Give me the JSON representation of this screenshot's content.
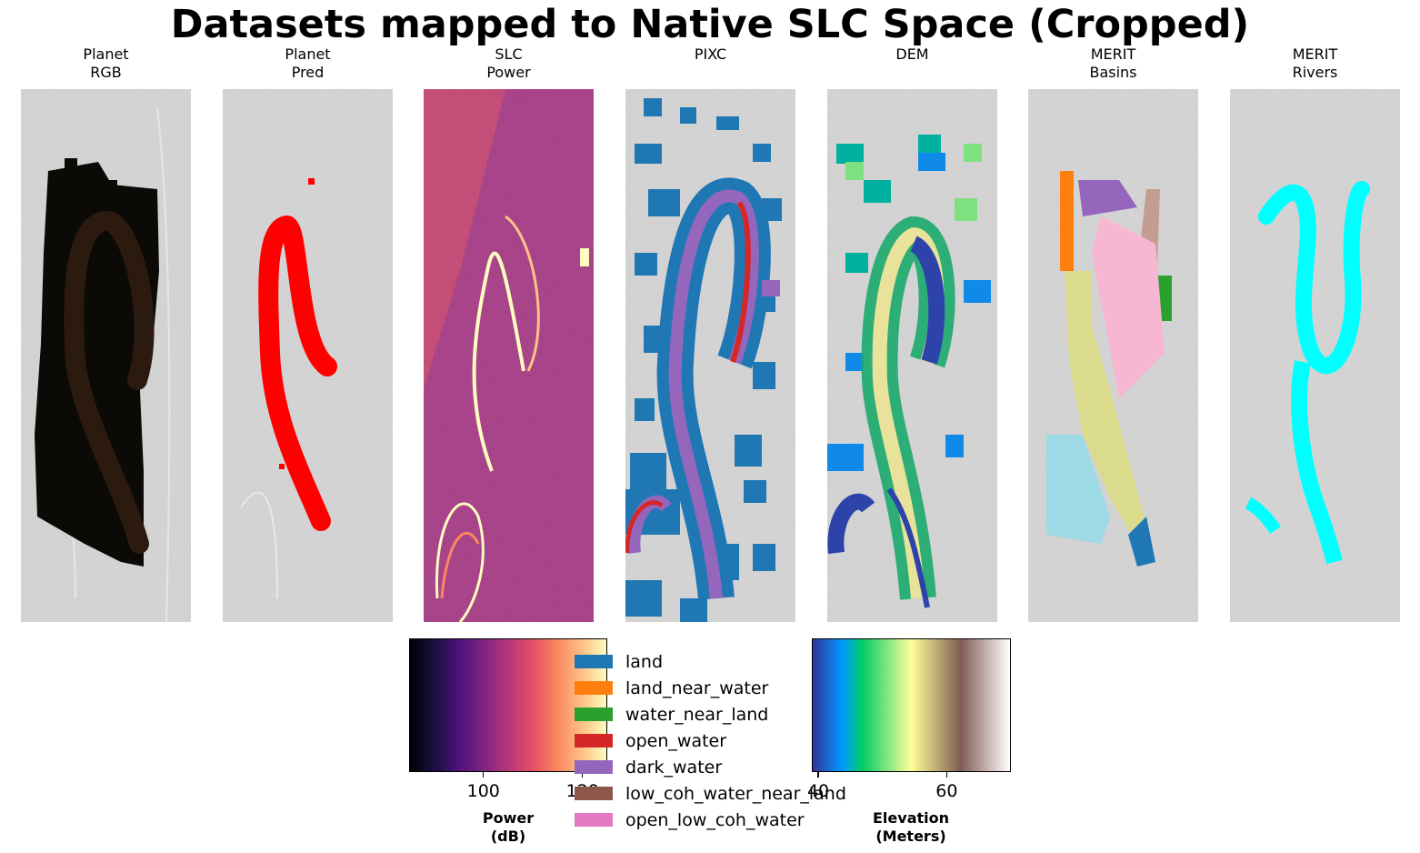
{
  "title": "Datasets mapped to Native SLC Space (Cropped)",
  "panels": [
    {
      "line1": "Planet",
      "line2": "RGB"
    },
    {
      "line1": "Planet",
      "line2": "Pred"
    },
    {
      "line1": "SLC",
      "line2": "Power"
    },
    {
      "line1": "",
      "line2": "PIXC"
    },
    {
      "line1": "",
      "line2": "DEM"
    },
    {
      "line1": "MERIT",
      "line2": "Basins"
    },
    {
      "line1": "MERIT",
      "line2": "Rivers"
    }
  ],
  "chart_data": [
    {
      "type": "colorbar",
      "colormap": "magma",
      "ticks": [
        100,
        120
      ],
      "tick_labels": [
        "100",
        "120"
      ],
      "range": [
        85,
        125
      ],
      "label_line1": "Power",
      "label_line2": "(dB)"
    },
    {
      "type": "colorbar",
      "colormap": "terrain",
      "ticks": [
        40,
        60
      ],
      "tick_labels": [
        "40",
        "60"
      ],
      "range": [
        39,
        70
      ],
      "label_line1": "Elevation",
      "label_line2": "(Meters)"
    },
    {
      "type": "legend",
      "entries": [
        {
          "label": "land",
          "color": "#1f77b4"
        },
        {
          "label": "land_near_water",
          "color": "#ff7f0e"
        },
        {
          "label": "water_near_land",
          "color": "#2ca02c"
        },
        {
          "label": "open_water",
          "color": "#d62728"
        },
        {
          "label": "dark_water",
          "color": "#9467bd"
        },
        {
          "label": "low_coh_water_near_land",
          "color": "#8c564b"
        },
        {
          "label": "open_low_coh_water",
          "color": "#e377c2"
        }
      ]
    }
  ],
  "colors": {
    "planet_rgb_dark": "#0b0a06",
    "planet_rgb_river": "#2a1a0e",
    "planet_pred": "#ff0000",
    "merit_rivers": "#00ffff",
    "background_gray": "#c8c8c8",
    "basin_colors": [
      "#ff7f0e",
      "#9467bd",
      "#c49c94",
      "#2ca02c",
      "#f7b6d2",
      "#dbdb8d",
      "#9edae5",
      "#1f77b4"
    ]
  }
}
